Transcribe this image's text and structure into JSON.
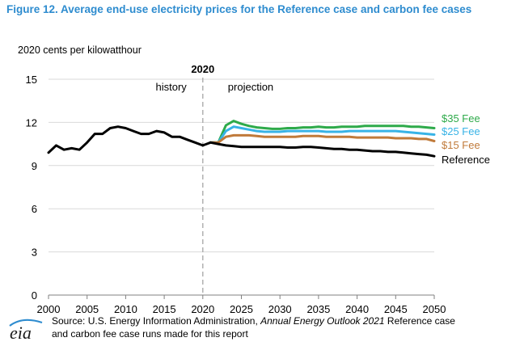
{
  "title": "Figure 12. Average end-use electricity prices for the Reference case and carbon fee cases",
  "source": {
    "prefix": "Source: U.S. Energy Information Administration, ",
    "italic": "Annual Energy Outlook 2021",
    "suffix": " Reference case",
    "line2": "and carbon fee case runs made for this report"
  },
  "logo_text": "eia",
  "chart_data": {
    "type": "line",
    "ylabel": "2020 cents per kilowatthour",
    "xlim": [
      2000,
      2050
    ],
    "ylim": [
      0,
      15
    ],
    "x_ticks": [
      2000,
      2005,
      2010,
      2015,
      2020,
      2025,
      2030,
      2035,
      2040,
      2045,
      2050
    ],
    "y_ticks": [
      0,
      3,
      6,
      9,
      12,
      15
    ],
    "grid": true,
    "divider": {
      "year": 2020,
      "label": "2020",
      "left_label": "history",
      "right_label": "projection"
    },
    "series": [
      {
        "name": "Reference",
        "color": "#000000",
        "x": [
          2000,
          2001,
          2002,
          2003,
          2004,
          2005,
          2006,
          2007,
          2008,
          2009,
          2010,
          2011,
          2012,
          2013,
          2014,
          2015,
          2016,
          2017,
          2018,
          2019,
          2020,
          2021,
          2022,
          2023,
          2024,
          2025,
          2026,
          2027,
          2028,
          2029,
          2030,
          2031,
          2032,
          2033,
          2034,
          2035,
          2036,
          2037,
          2038,
          2039,
          2040,
          2041,
          2042,
          2043,
          2044,
          2045,
          2046,
          2047,
          2048,
          2049,
          2050
        ],
        "values": [
          9.9,
          10.4,
          10.1,
          10.2,
          10.1,
          10.6,
          11.2,
          11.2,
          11.6,
          11.7,
          11.6,
          11.4,
          11.2,
          11.2,
          11.4,
          11.3,
          11.0,
          11.0,
          10.8,
          10.6,
          10.4,
          10.6,
          10.5,
          10.4,
          10.35,
          10.3,
          10.3,
          10.3,
          10.3,
          10.3,
          10.3,
          10.25,
          10.25,
          10.3,
          10.3,
          10.25,
          10.2,
          10.15,
          10.15,
          10.1,
          10.1,
          10.05,
          10.0,
          10.0,
          9.95,
          9.95,
          9.9,
          9.85,
          9.8,
          9.75,
          9.65
        ]
      },
      {
        "name": "$15 Fee",
        "color": "#c07a3a",
        "x": [
          2021,
          2022,
          2023,
          2024,
          2025,
          2026,
          2027,
          2028,
          2029,
          2030,
          2031,
          2032,
          2033,
          2034,
          2035,
          2036,
          2037,
          2038,
          2039,
          2040,
          2041,
          2042,
          2043,
          2044,
          2045,
          2046,
          2047,
          2048,
          2049,
          2050
        ],
        "values": [
          10.6,
          10.6,
          11.0,
          11.1,
          11.1,
          11.1,
          11.05,
          11.0,
          11.0,
          11.0,
          11.0,
          11.0,
          11.05,
          11.05,
          11.05,
          11.0,
          11.0,
          11.0,
          11.0,
          10.95,
          10.95,
          10.95,
          10.95,
          10.95,
          10.9,
          10.9,
          10.9,
          10.85,
          10.85,
          10.7
        ]
      },
      {
        "name": "$25 Fee",
        "color": "#38b3e6",
        "x": [
          2021,
          2022,
          2023,
          2024,
          2025,
          2026,
          2027,
          2028,
          2029,
          2030,
          2031,
          2032,
          2033,
          2034,
          2035,
          2036,
          2037,
          2038,
          2039,
          2040,
          2041,
          2042,
          2043,
          2044,
          2045,
          2046,
          2047,
          2048,
          2049,
          2050
        ],
        "values": [
          10.6,
          10.6,
          11.4,
          11.7,
          11.6,
          11.5,
          11.4,
          11.35,
          11.35,
          11.35,
          11.4,
          11.4,
          11.4,
          11.4,
          11.4,
          11.35,
          11.35,
          11.35,
          11.4,
          11.4,
          11.4,
          11.4,
          11.4,
          11.4,
          11.4,
          11.35,
          11.3,
          11.25,
          11.2,
          11.15
        ]
      },
      {
        "name": "$35 Fee",
        "color": "#2eaa4a",
        "x": [
          2021,
          2022,
          2023,
          2024,
          2025,
          2026,
          2027,
          2028,
          2029,
          2030,
          2031,
          2032,
          2033,
          2034,
          2035,
          2036,
          2037,
          2038,
          2039,
          2040,
          2041,
          2042,
          2043,
          2044,
          2045,
          2046,
          2047,
          2048,
          2049,
          2050
        ],
        "values": [
          10.6,
          10.6,
          11.8,
          12.1,
          11.9,
          11.75,
          11.65,
          11.6,
          11.55,
          11.55,
          11.6,
          11.6,
          11.65,
          11.65,
          11.7,
          11.65,
          11.65,
          11.7,
          11.7,
          11.7,
          11.75,
          11.75,
          11.75,
          11.75,
          11.75,
          11.75,
          11.7,
          11.7,
          11.65,
          11.6
        ]
      }
    ]
  }
}
